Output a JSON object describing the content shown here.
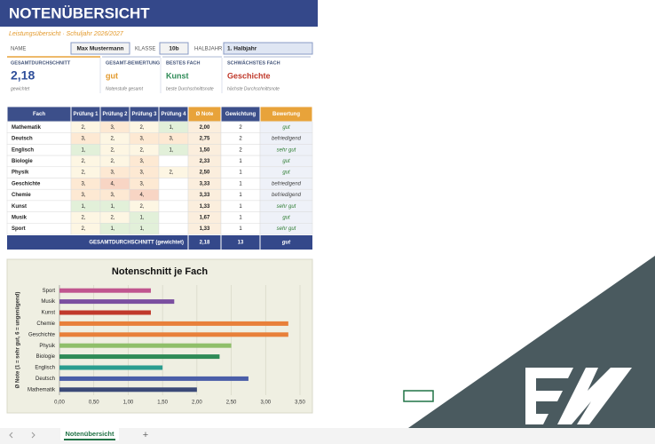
{
  "header": {
    "title": "NOTENÜBERSICHT",
    "subtitle": "Leistungsübersicht · Schuljahr 2026/2027"
  },
  "info": {
    "name_label": "NAME",
    "name": "Max Mustermann",
    "class_label": "KLASSE",
    "class": "10b",
    "term_label": "HALBJAHR",
    "term": "1. Halbjahr"
  },
  "cards": [
    {
      "label": "GESAMTDURCHSCHNITT",
      "value": "2,18",
      "caption": "gewichtet",
      "color": "#2f4f9a"
    },
    {
      "label": "GESAMT-BEWERTUNG",
      "value": "gut",
      "caption": "Notenstufe gesamt",
      "color": "#e39a2d"
    },
    {
      "label": "BESTES FACH",
      "value": "Kunst",
      "caption": "beste Durchschnittsnote",
      "color": "#2e8b57"
    },
    {
      "label": "SCHWÄCHSTES FACH",
      "value": "Geschichte",
      "caption": "höchste Durchschnittsnote",
      "color": "#c0392b"
    }
  ],
  "table": {
    "columns": [
      "Fach",
      "Prüfung 1",
      "Prüfung 2",
      "Prüfung 3",
      "Prüfung 4",
      "Ø Note",
      "Gewichtung",
      "Bewertung"
    ],
    "rows": [
      [
        "Mathematik",
        "2,",
        "3,",
        "2,",
        "1,",
        "2,00",
        2,
        "gut"
      ],
      [
        "Deutsch",
        "3,",
        "2,",
        "3,",
        "3,",
        "2,75",
        2,
        "befriedigend"
      ],
      [
        "Englisch",
        "1,",
        "2,",
        "2,",
        "1,",
        "1,50",
        2,
        "sehr gut"
      ],
      [
        "Biologie",
        "2,",
        "2,",
        "3,",
        null,
        "2,33",
        1,
        "gut"
      ],
      [
        "Physik",
        "2,",
        "3,",
        "3,",
        "2,",
        "2,50",
        1,
        "gut"
      ],
      [
        "Geschichte",
        "3,",
        "4,",
        "3,",
        null,
        "3,33",
        1,
        "befriedigend"
      ],
      [
        "Chemie",
        "3,",
        "3,",
        "4,",
        null,
        "3,33",
        1,
        "befriedigend"
      ],
      [
        "Kunst",
        "1,",
        "1,",
        "2,",
        null,
        "1,33",
        1,
        "sehr gut"
      ],
      [
        "Musik",
        "2,",
        "2,",
        "1,",
        null,
        "1,67",
        1,
        "gut"
      ],
      [
        "Sport",
        "2,",
        "1,",
        "1,",
        null,
        "1,33",
        1,
        "sehr gut"
      ]
    ],
    "footer": [
      "GESAMTDURCHSCHNITT (gewichtet)",
      "2,18",
      13,
      "gut"
    ]
  },
  "chart_data": {
    "type": "bar",
    "orientation": "horizontal",
    "title": "Notenschnitt je Fach",
    "y_label": "Ø Note (1 = sehr gut, 6 = ungenügend)",
    "categories": [
      "Mathematik",
      "Deutsch",
      "Englisch",
      "Biologie",
      "Physik",
      "Geschichte",
      "Chemie",
      "Kunst",
      "Musik",
      "Sport"
    ],
    "values": [
      2,
      2.75,
      1.5,
      2.33,
      2.5,
      3.33,
      3.33,
      1.33,
      1.67,
      1.33
    ],
    "colors": [
      "#3b4a78",
      "#4a5ea8",
      "#2a9d8f",
      "#2e8b57",
      "#8fbf6a",
      "#e8803a",
      "#e8803a",
      "#c0392b",
      "#7b4fa0",
      "#c0568f"
    ],
    "xlim": [
      0,
      3.5
    ],
    "xticks": [
      {
        "value": 0,
        "label": "0,00"
      },
      {
        "value": 0.5,
        "label": "0,50"
      },
      {
        "value": 1,
        "label": "1,00"
      },
      {
        "value": 1.5,
        "label": "1,50"
      },
      {
        "value": 2,
        "label": "2,00"
      },
      {
        "value": 2.5,
        "label": "2,50"
      },
      {
        "value": 3,
        "label": "3,00"
      },
      {
        "value": 3.5,
        "label": "3,50"
      }
    ],
    "grid": true
  },
  "tabs": {
    "sheet": "Notenübersicht",
    "add": "+"
  }
}
